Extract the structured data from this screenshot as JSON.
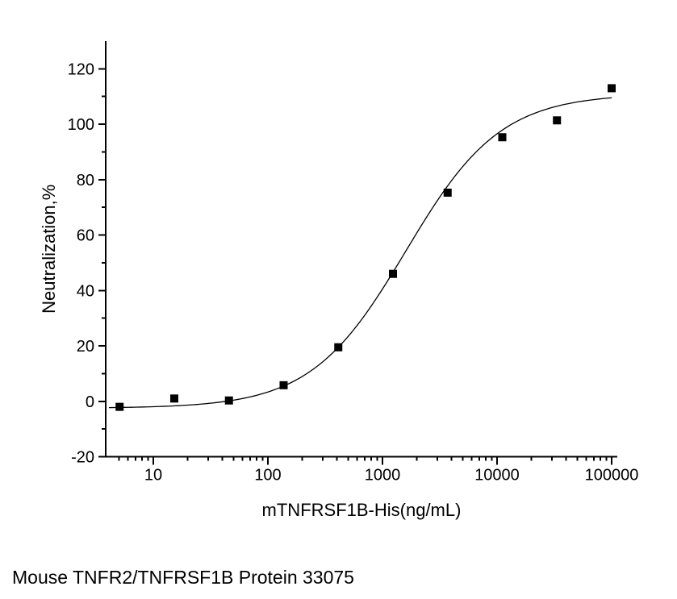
{
  "page": {
    "background_color": "#ffffff",
    "foreground_color": "#000000"
  },
  "caption": {
    "text": "Mouse TNFR2/TNFRSF1B Protein 33075"
  },
  "chart_data": {
    "type": "scatter",
    "title": "",
    "xlabel": "mTNFRSF1B-His(ng/mL)",
    "ylabel": "Neutralization,%",
    "x_scale": "log",
    "y_scale": "linear",
    "xlim": [
      3.8,
      112000
    ],
    "ylim": [
      -20,
      130
    ],
    "x_major_ticks": [
      10,
      100,
      1000,
      10000,
      100000
    ],
    "x_tick_labels": [
      "10",
      "100",
      "1000",
      "10000",
      "100000"
    ],
    "x_minor_tick_rule": "multiples 2-9 of each decade",
    "y_major_ticks": [
      -20,
      0,
      20,
      40,
      60,
      80,
      100,
      120
    ],
    "y_minor_tick_step": 10,
    "grid": false,
    "legend": "none",
    "axis_color": "#000000",
    "marker": {
      "shape": "square",
      "size": 10,
      "color": "#000000"
    },
    "curve_color": "#000000",
    "series": [
      {
        "name": "mTNFRSF1B-His",
        "x": [
          5.08,
          15.24,
          45.72,
          137.17,
          411.52,
          1234.57,
          3703.7,
          11111.1,
          33333.3,
          100000
        ],
        "y": [
          -2,
          1,
          0.3,
          5.8,
          19.5,
          46,
          75.3,
          95.3,
          101.4,
          113
        ]
      }
    ],
    "curve_fit": {
      "model": "4PL",
      "bottom": -2.5,
      "top": 111,
      "ec50": 1600,
      "hill": 1.05,
      "x_start": 4.1,
      "x_end": 100000
    }
  }
}
